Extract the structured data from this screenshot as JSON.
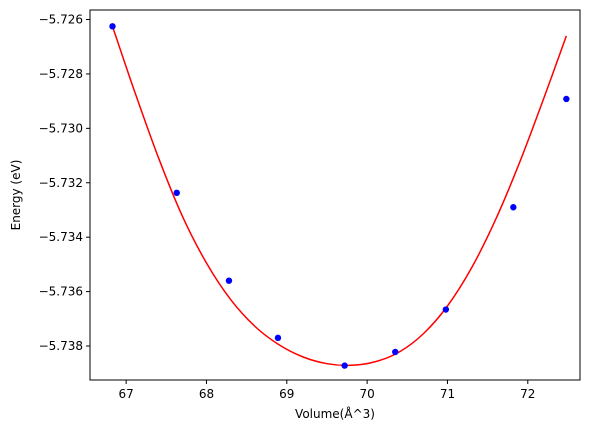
{
  "chart_data": {
    "type": "scatter",
    "title": "",
    "xlabel": "Volume(Å^3)",
    "ylabel": "Energy (eV)",
    "xlim": [
      66.55,
      72.65
    ],
    "ylim": [
      -5.73925,
      -5.72565
    ],
    "grid": false,
    "legend": "none",
    "x_ticks": [
      67,
      68,
      69,
      70,
      71,
      72
    ],
    "x_tick_labels": [
      "67",
      "68",
      "69",
      "70",
      "71",
      "72"
    ],
    "y_ticks": [
      -5.726,
      -5.728,
      -5.73,
      -5.732,
      -5.734,
      -5.736,
      -5.738
    ],
    "y_tick_labels": [
      "−5.726",
      "−5.728",
      "−5.730",
      "−5.732",
      "−5.734",
      "−5.736",
      "−5.738"
    ],
    "series": [
      {
        "kind": "points",
        "color": "#0000ff",
        "x": [
          66.83,
          67.63,
          68.28,
          68.89,
          69.72,
          70.35,
          70.98,
          71.82,
          72.48
        ],
        "y": [
          -5.72625,
          -5.73237,
          -5.7356,
          -5.7377,
          -5.73872,
          -5.73822,
          -5.73666,
          -5.7329,
          -5.72892
        ]
      },
      {
        "kind": "fit",
        "color": "#ff0000",
        "x": [
          66.83,
          67.1,
          67.4,
          67.7,
          68.0,
          68.3,
          68.6,
          68.9,
          69.2,
          69.5,
          69.8,
          70.1,
          70.4,
          70.7,
          71.0,
          71.3,
          71.6,
          71.9,
          72.2,
          72.48
        ],
        "y": [
          -5.72625,
          -5.7286,
          -5.73106,
          -5.73323,
          -5.73495,
          -5.73629,
          -5.73727,
          -5.73795,
          -5.7384,
          -5.73865,
          -5.73871,
          -5.73858,
          -5.73822,
          -5.73755,
          -5.73653,
          -5.73513,
          -5.73335,
          -5.73124,
          -5.72889,
          -5.7266
        ]
      }
    ]
  }
}
